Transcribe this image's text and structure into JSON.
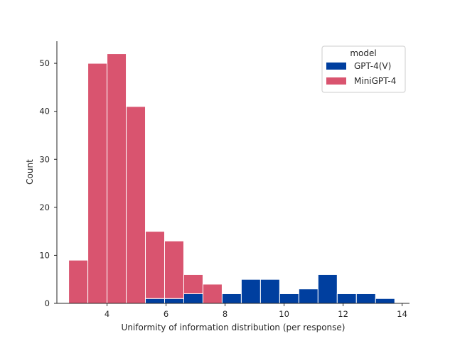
{
  "chart_data": {
    "type": "bar",
    "subtype": "stacked-histogram",
    "xlabel": "Uniformity of information distribution (per response)",
    "ylabel": "Count",
    "xlim": [
      2.3,
      14.25
    ],
    "ylim": [
      0,
      54.6
    ],
    "xticks": [
      "4",
      "6",
      "8",
      "10",
      "12",
      "14"
    ],
    "yticks": [
      "0",
      "10",
      "20",
      "30",
      "40",
      "50"
    ],
    "grid": false,
    "legend": {
      "title": "model",
      "placement": "top-right"
    },
    "bin_edges": [
      2.7,
      3.35,
      4.0,
      4.65,
      5.3,
      5.95,
      6.6,
      7.25,
      7.9,
      8.55,
      9.2,
      9.85,
      10.5,
      11.15,
      11.8,
      12.45,
      13.1,
      13.75
    ],
    "series": [
      {
        "name": "GPT-4(V)",
        "color": "#003f9f",
        "values": [
          0,
          0,
          0,
          0,
          1,
          1,
          2,
          0,
          2,
          5,
          5,
          2,
          3,
          6,
          2,
          2,
          1
        ]
      },
      {
        "name": "MiniGPT-4",
        "color": "#d9546f",
        "values": [
          9,
          50,
          52,
          41,
          14,
          12,
          4,
          4,
          0,
          0,
          0,
          0,
          0,
          0,
          0,
          0,
          0
        ]
      }
    ]
  }
}
